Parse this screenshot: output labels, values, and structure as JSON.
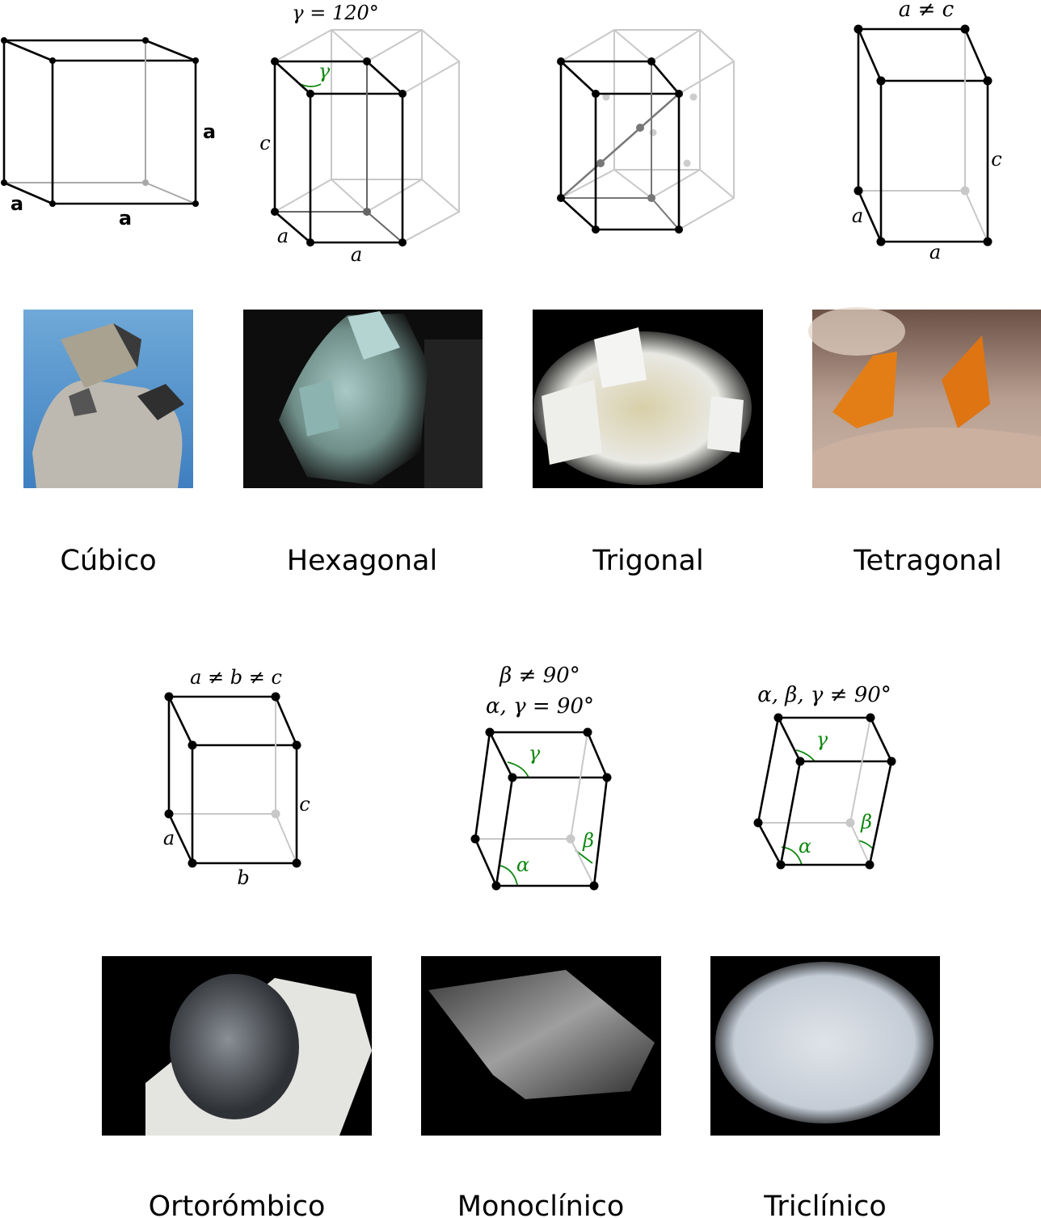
{
  "systems": [
    {
      "name": "Cúbico",
      "edge_labels": [
        "a",
        "a",
        "a"
      ]
    },
    {
      "name": "Hexagonal",
      "caption": "γ = 120°",
      "edge_labels": [
        "γ",
        "c",
        "a",
        "a"
      ]
    },
    {
      "name": "Trigonal"
    },
    {
      "name": "Tetragonal",
      "caption": "a ≠ c",
      "edge_labels": [
        "c",
        "a",
        "a"
      ]
    },
    {
      "name": "Ortorómbico",
      "caption": "a ≠ b ≠ c",
      "edge_labels": [
        "c",
        "a",
        "b"
      ]
    },
    {
      "name": "Monoclínico",
      "caption": [
        "β ≠ 90°",
        "α, γ = 90°"
      ],
      "edge_labels": [
        "γ",
        "β",
        "α"
      ]
    },
    {
      "name": "Triclínico",
      "caption": "α, β, γ ≠ 90°",
      "edge_labels": [
        "γ",
        "β",
        "α"
      ]
    }
  ]
}
